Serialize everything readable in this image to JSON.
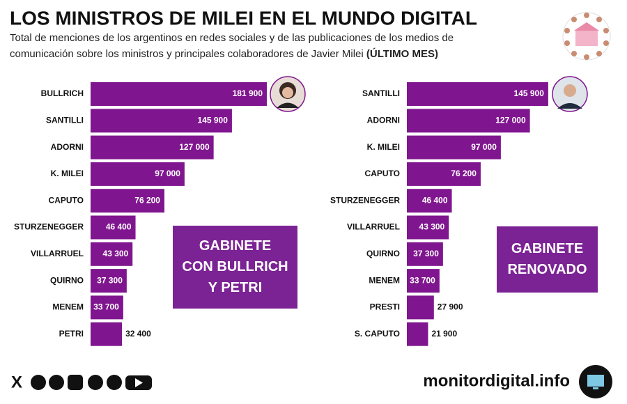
{
  "header": {
    "title": "LOS MINISTROS DE MILEI EN EL MUNDO DIGITAL",
    "subtitle_lines": [
      "Total de menciones de los argentinos en redes sociales y de las publicaciones de los medios de",
      "comunicación sobre los ministros y principales colaboradores de Javier Milei"
    ],
    "subtitle_bold": "(ÚLTIMO MES)"
  },
  "chart_data": [
    {
      "type": "bar",
      "orientation": "horizontal",
      "color": "#80168f",
      "annotation": [
        "GABINETE",
        "CON BULLRICH",
        "Y PETRI"
      ],
      "categories": [
        "BULLRICH",
        "SANTILLI",
        "ADORNI",
        "K. MILEI",
        "CAPUTO",
        "STURZENEGGER",
        "VILLARRUEL",
        "QUIRNO",
        "MENEM",
        "PETRI"
      ],
      "values": [
        181900,
        145900,
        127000,
        97000,
        76200,
        46400,
        43300,
        37300,
        33700,
        32400
      ],
      "value_labels": [
        "181 900",
        "145 900",
        "127 000",
        "97 000",
        "76 200",
        "46 400",
        "43 300",
        "37 300",
        "33 700",
        "32 400"
      ]
    },
    {
      "type": "bar",
      "orientation": "horizontal",
      "color": "#80168f",
      "annotation": [
        "GABINETE",
        "RENOVADO"
      ],
      "categories": [
        "SANTILLI",
        "ADORNI",
        "K. MILEI",
        "CAPUTO",
        "STURZENEGGER",
        "VILLARRUEL",
        "QUIRNO",
        "MENEM",
        "PRESTI",
        "S. CAPUTO"
      ],
      "values": [
        145900,
        127000,
        97000,
        76200,
        46400,
        43300,
        37300,
        33700,
        27900,
        21900
      ],
      "value_labels": [
        "145 900",
        "127 000",
        "97 000",
        "76 200",
        "46 400",
        "43 300",
        "37 300",
        "33 700",
        "27 900",
        "21 900"
      ]
    }
  ],
  "footer": {
    "site": "monitordigital.info"
  }
}
